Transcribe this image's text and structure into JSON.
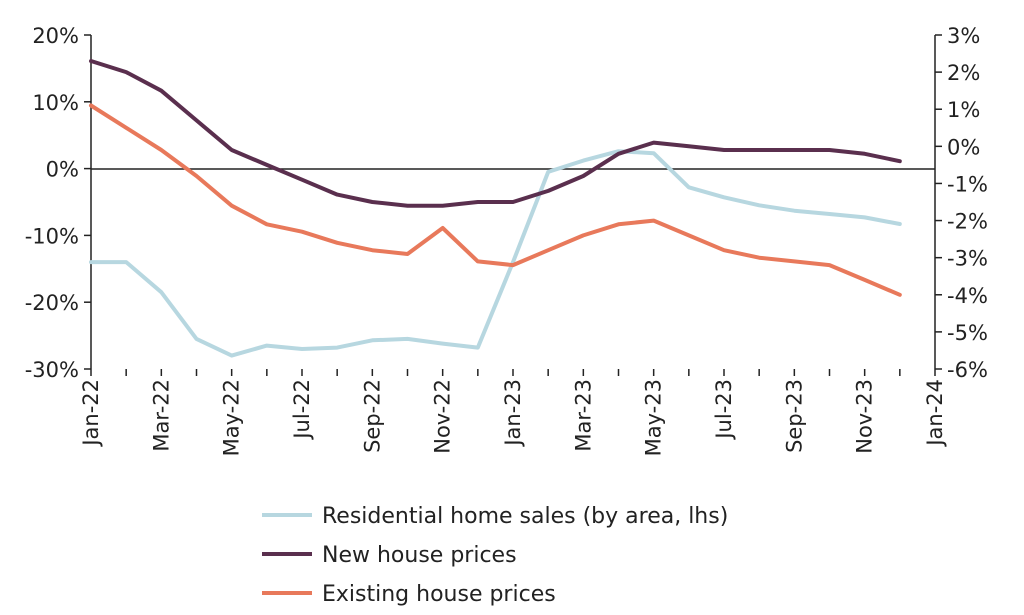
{
  "chart_data": {
    "type": "line",
    "title": "",
    "x": [
      "Jan-22",
      "Feb-22",
      "Mar-22",
      "Apr-22",
      "May-22",
      "Jun-22",
      "Jul-22",
      "Aug-22",
      "Sep-22",
      "Oct-22",
      "Nov-22",
      "Dec-22",
      "Jan-23",
      "Feb-23",
      "Mar-23",
      "Apr-23",
      "May-23",
      "Jun-23",
      "Jul-23",
      "Aug-23",
      "Sep-23",
      "Oct-23",
      "Nov-23",
      "Dec-23"
    ],
    "x_tick_labels": [
      "Jan-22",
      "Mar-22",
      "May-22",
      "Jul-22",
      "Sep-22",
      "Nov-22",
      "Jan-23",
      "Mar-23",
      "May-23",
      "Jul-23",
      "Sep-23",
      "Nov-23",
      "Jan-24"
    ],
    "y_left": {
      "range": [
        -30,
        20
      ],
      "ticks": [
        "20%",
        "10%",
        "0%",
        "-10%",
        "-20%",
        "-30%"
      ]
    },
    "y_right": {
      "range": [
        -6,
        3
      ],
      "ticks": [
        "3%",
        "2%",
        "1%",
        "0%",
        "-1%",
        "-2%",
        "-3%",
        "-4%",
        "-5%",
        "-6%"
      ]
    },
    "grid": false,
    "legend_position": "bottom",
    "series": [
      {
        "name": "Residential home sales (by area, lhs)",
        "axis": "left",
        "color": "#b7d7e0",
        "values": [
          -14,
          -14,
          -18.5,
          -25.5,
          -28,
          -26.5,
          -27,
          -26.8,
          -25.7,
          -25.5,
          -26.2,
          -26.8,
          -14,
          -0.5,
          1.2,
          2.6,
          2.3,
          -2.8,
          -4.3,
          -5.5,
          -6.3,
          -6.8,
          -7.3,
          -8.3
        ]
      },
      {
        "name": "New house prices",
        "axis": "right",
        "color": "#5a2f4e",
        "values": [
          2.3,
          2.0,
          1.5,
          0.7,
          -0.1,
          -0.5,
          -0.9,
          -1.3,
          -1.5,
          -1.6,
          -1.6,
          -1.5,
          -1.5,
          -1.2,
          -0.8,
          -0.2,
          0.1,
          0.0,
          -0.1,
          -0.1,
          -0.1,
          -0.1,
          -0.2,
          -0.4
        ]
      },
      {
        "name": "Existing house prices",
        "axis": "right",
        "color": "#e8795b",
        "values": [
          1.1,
          0.5,
          -0.1,
          -0.8,
          -1.6,
          -2.1,
          -2.3,
          -2.6,
          -2.8,
          -2.9,
          -2.2,
          -3.1,
          -3.2,
          -2.8,
          -2.4,
          -2.1,
          -2.0,
          -2.4,
          -2.8,
          -3.0,
          -3.1,
          -3.2,
          -3.6,
          -4.0
        ]
      }
    ]
  }
}
